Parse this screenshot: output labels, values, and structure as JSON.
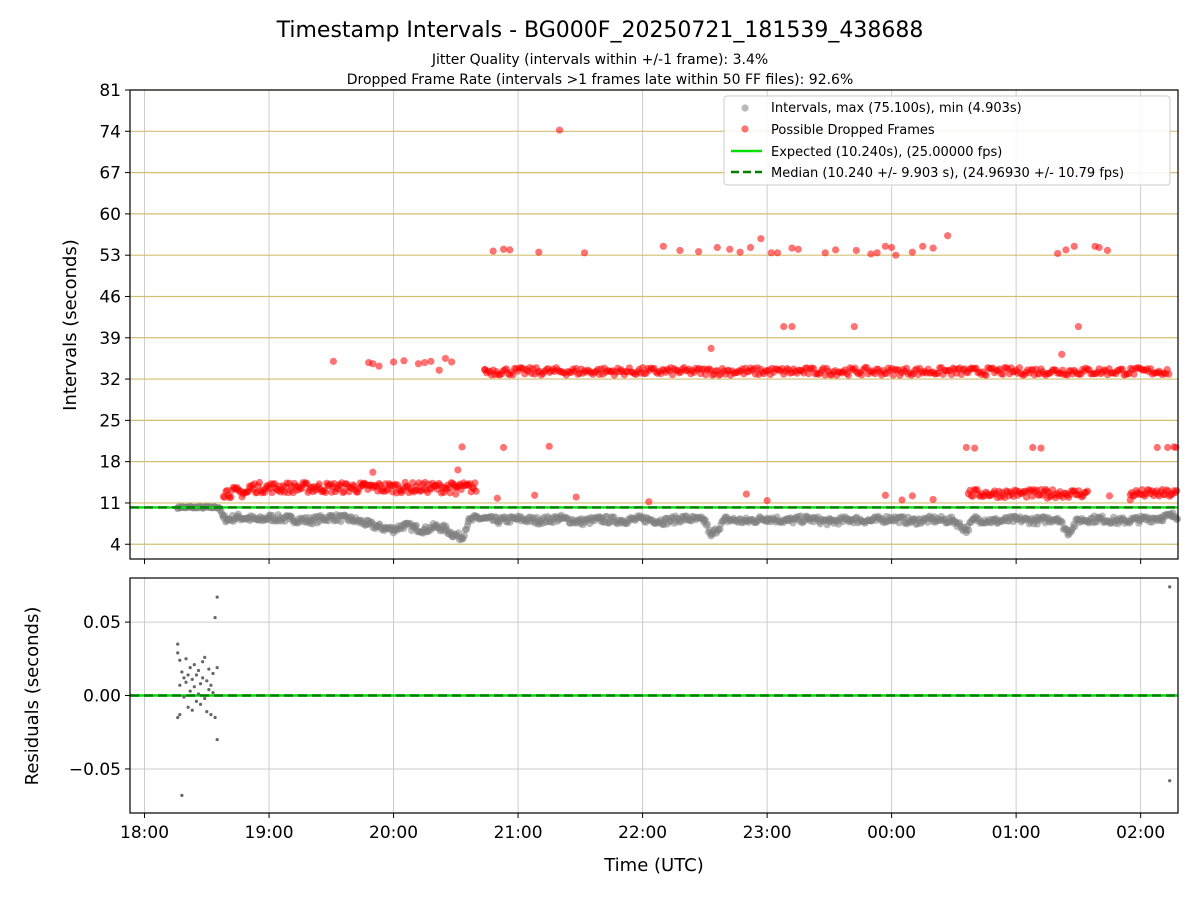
{
  "title": "Timestamp Intervals - BG000F_20250721_181539_438688",
  "subtitle_1": "Jitter Quality (intervals within +/-1 frame): 3.4%",
  "subtitle_2": "Dropped Frame Rate (intervals >1 frames late within 50 FF files): 92.6%",
  "colors": {
    "intervals": "#808080",
    "dropped": "#ff0000",
    "expected": "#00e000",
    "median": "#007f00",
    "hgrid": "#d2bf72",
    "vgrid": "#cccccc"
  },
  "chart_data": [
    {
      "type": "scatter",
      "ylabel": "Intervals (seconds)",
      "xlim": [
        "17:53",
        "02:18"
      ],
      "ylim": [
        1.5,
        81
      ],
      "yticks": [
        "4",
        "11",
        "18",
        "25",
        "32",
        "39",
        "46",
        "53",
        "60",
        "67",
        "74",
        "81"
      ],
      "grid": true,
      "legend_position": "top-right",
      "legend": [
        "Intervals, max (75.100s), min (4.903s)",
        "Possible Dropped Frames",
        "Expected (10.240s), (25.00000 fps)",
        "Median (10.240 +/- 9.903 s), (24.96930 +/- 10.79 fps)"
      ],
      "reference_lines": [
        {
          "name": "Expected",
          "y": 10.24,
          "style": "solid"
        },
        {
          "name": "Median",
          "y": 10.24,
          "style": "dashed"
        }
      ],
      "series": [
        {
          "name": "Intervals, max (75.100s), min (4.903s)",
          "points": [
            [
              "18:16",
              10.2
            ],
            [
              "18:18",
              10.3
            ],
            [
              "18:20",
              10.2
            ],
            [
              "18:22",
              10.3
            ],
            [
              "18:24",
              10.2
            ],
            [
              "18:26",
              10.3
            ],
            [
              "18:28",
              10.2
            ],
            [
              "18:30",
              10.3
            ],
            [
              "18:32",
              10.2
            ],
            [
              "18:34",
              10.3
            ],
            [
              "18:36",
              10.2
            ],
            [
              "18:38",
              8.5
            ],
            [
              "18:40",
              8.2
            ],
            [
              "18:45",
              8.6
            ],
            [
              "18:50",
              8.4
            ],
            [
              "18:55",
              8.1
            ],
            [
              "19:00",
              8.5
            ],
            [
              "19:10",
              8.3
            ],
            [
              "19:20",
              8.0
            ],
            [
              "19:30",
              8.6
            ],
            [
              "19:40",
              8.2
            ],
            [
              "19:48",
              7.4
            ],
            [
              "19:52",
              7.0
            ],
            [
              "19:56",
              6.7
            ],
            [
              "20:00",
              6.5
            ],
            [
              "20:05",
              7.2
            ],
            [
              "20:10",
              6.8
            ],
            [
              "20:15",
              6.4
            ],
            [
              "20:20",
              7.0
            ],
            [
              "20:25",
              6.6
            ],
            [
              "20:28",
              5.8
            ],
            [
              "20:33",
              5.1
            ],
            [
              "20:36",
              7.8
            ],
            [
              "20:40",
              8.5
            ],
            [
              "20:50",
              8.0
            ],
            [
              "21:00",
              8.3
            ],
            [
              "21:10",
              8.0
            ],
            [
              "21:20",
              8.4
            ],
            [
              "21:30",
              7.8
            ],
            [
              "21:40",
              8.2
            ],
            [
              "21:50",
              8.0
            ],
            [
              "22:00",
              8.3
            ],
            [
              "22:10",
              7.9
            ],
            [
              "22:20",
              8.4
            ],
            [
              "22:30",
              8.0
            ],
            [
              "22:33",
              5.4
            ],
            [
              "22:40",
              8.2
            ],
            [
              "22:50",
              7.9
            ],
            [
              "23:00",
              8.4
            ],
            [
              "23:10",
              8.0
            ],
            [
              "23:20",
              8.3
            ],
            [
              "23:30",
              7.8
            ],
            [
              "23:40",
              8.2
            ],
            [
              "23:50",
              8.0
            ],
            [
              "00:00",
              8.4
            ],
            [
              "00:10",
              7.9
            ],
            [
              "00:20",
              8.2
            ],
            [
              "00:30",
              8.0
            ],
            [
              "00:36",
              6.4
            ],
            [
              "00:40",
              8.3
            ],
            [
              "00:50",
              7.9
            ],
            [
              "01:00",
              8.2
            ],
            [
              "01:10",
              8.0
            ],
            [
              "01:20",
              8.4
            ],
            [
              "01:25",
              6.0
            ],
            [
              "01:30",
              8.1
            ],
            [
              "01:40",
              8.3
            ],
            [
              "01:50",
              7.9
            ],
            [
              "02:00",
              8.2
            ],
            [
              "02:10",
              8.5
            ],
            [
              "02:15",
              8.8
            ]
          ]
        },
        {
          "name": "Possible Dropped Frames",
          "points": [
            [
              "19:31",
              35.0
            ],
            [
              "19:48",
              34.8
            ],
            [
              "19:50",
              34.6
            ],
            [
              "19:53",
              34.2
            ],
            [
              "20:00",
              34.9
            ],
            [
              "20:05",
              35.1
            ],
            [
              "20:12",
              34.6
            ],
            [
              "20:15",
              34.8
            ],
            [
              "20:18",
              35.0
            ],
            [
              "20:22",
              33.5
            ],
            [
              "20:25",
              35.5
            ],
            [
              "20:28",
              34.9
            ],
            [
              "20:31",
              16.6
            ],
            [
              "20:33",
              20.5
            ],
            [
              "20:44",
              33.6
            ],
            [
              "20:48",
              53.7
            ],
            [
              "20:53",
              54.0
            ],
            [
              "20:56",
              53.9
            ],
            [
              "20:53",
              20.4
            ],
            [
              "21:15",
              20.6
            ],
            [
              "21:10",
              53.5
            ],
            [
              "21:20",
              74.2
            ],
            [
              "21:32",
              53.4
            ],
            [
              "22:10",
              54.5
            ],
            [
              "22:18",
              53.8
            ],
            [
              "22:27",
              53.6
            ],
            [
              "22:33",
              37.2
            ],
            [
              "22:36",
              54.3
            ],
            [
              "22:42",
              54.0
            ],
            [
              "22:47",
              53.5
            ],
            [
              "22:52",
              54.3
            ],
            [
              "22:57",
              55.8
            ],
            [
              "23:02",
              53.4
            ],
            [
              "23:05",
              53.4
            ],
            [
              "23:12",
              54.2
            ],
            [
              "23:15",
              54.0
            ],
            [
              "23:08",
              40.9
            ],
            [
              "23:12",
              40.9
            ],
            [
              "23:28",
              53.4
            ],
            [
              "23:33",
              53.9
            ],
            [
              "23:42",
              40.9
            ],
            [
              "23:43",
              53.8
            ],
            [
              "23:50",
              53.2
            ],
            [
              "23:53",
              53.4
            ],
            [
              "23:57",
              54.5
            ],
            [
              "00:00",
              54.3
            ],
            [
              "00:02",
              53.0
            ],
            [
              "00:10",
              53.5
            ],
            [
              "00:15",
              54.5
            ],
            [
              "00:20",
              54.2
            ],
            [
              "00:27",
              56.3
            ],
            [
              "00:36",
              20.4
            ],
            [
              "00:40",
              20.3
            ],
            [
              "01:08",
              20.4
            ],
            [
              "01:12",
              20.3
            ],
            [
              "01:20",
              53.3
            ],
            [
              "01:24",
              53.9
            ],
            [
              "01:28",
              54.5
            ],
            [
              "01:30",
              40.9
            ],
            [
              "01:38",
              54.5
            ],
            [
              "01:40",
              54.3
            ],
            [
              "01:44",
              53.8
            ],
            [
              "01:22",
              36.2
            ],
            [
              "02:08",
              20.4
            ],
            [
              "02:13",
              20.4
            ],
            [
              "02:16",
              20.5
            ],
            [
              "02:17",
              20.4
            ],
            [
              "19:45",
              14.0
            ],
            [
              "19:50",
              16.2
            ],
            [
              "20:30",
              12.5
            ],
            [
              "20:50",
              11.8
            ],
            [
              "21:08",
              12.3
            ],
            [
              "21:28",
              12.0
            ],
            [
              "22:03",
              11.2
            ],
            [
              "22:50",
              12.5
            ],
            [
              "23:00",
              11.4
            ],
            [
              "23:57",
              12.3
            ],
            [
              "00:05",
              11.5
            ],
            [
              "00:10",
              12.2
            ],
            [
              "00:20",
              11.6
            ],
            [
              "01:15",
              11.8
            ],
            [
              "01:45",
              12.2
            ],
            [
              "01:55",
              11.5
            ]
          ]
        }
      ]
    },
    {
      "type": "scatter",
      "xlabel": "Time (UTC)",
      "ylabel": "Residuals (seconds)",
      "xlim": [
        "17:53",
        "02:18"
      ],
      "ylim": [
        -0.08,
        0.08
      ],
      "xticks": [
        "18:00",
        "19:00",
        "20:00",
        "21:00",
        "22:00",
        "23:00",
        "00:00",
        "01:00",
        "02:00"
      ],
      "yticks": [
        "0.05",
        "0.00",
        "−0.05"
      ],
      "grid": true,
      "reference_lines": [
        {
          "name": "Expected",
          "y": 0.0,
          "style": "solid"
        },
        {
          "name": "Median",
          "y": 0.0,
          "style": "dashed"
        }
      ],
      "series": [
        {
          "name": "Residuals",
          "points": [
            [
              "18:16",
              0.035
            ],
            [
              "18:16",
              0.029
            ],
            [
              "18:16",
              -0.015
            ],
            [
              "18:17",
              0.024
            ],
            [
              "18:17",
              -0.013
            ],
            [
              "18:17",
              0.007
            ],
            [
              "18:18",
              0.016
            ],
            [
              "18:18",
              -0.068
            ],
            [
              "18:19",
              0.012
            ],
            [
              "18:19",
              -0.001
            ],
            [
              "18:20",
              0.025
            ],
            [
              "18:20",
              0.009
            ],
            [
              "18:21",
              -0.008
            ],
            [
              "18:21",
              0.014
            ],
            [
              "18:22",
              0.003
            ],
            [
              "18:22",
              0.019
            ],
            [
              "18:23",
              -0.01
            ],
            [
              "18:23",
              0.011
            ],
            [
              "18:24",
              0.021
            ],
            [
              "18:24",
              0.006
            ],
            [
              "18:25",
              -0.004
            ],
            [
              "18:25",
              0.014
            ],
            [
              "18:26",
              0.001
            ],
            [
              "18:26",
              0.017
            ],
            [
              "18:27",
              -0.006
            ],
            [
              "18:27",
              0.008
            ],
            [
              "18:28",
              0.023
            ],
            [
              "18:28",
              0.012
            ],
            [
              "18:29",
              -0.002
            ],
            [
              "18:29",
              0.026
            ],
            [
              "18:30",
              0.01
            ],
            [
              "18:30",
              -0.011
            ],
            [
              "18:31",
              0.004
            ],
            [
              "18:31",
              0.018
            ],
            [
              "18:32",
              -0.013
            ],
            [
              "18:32",
              0.007
            ],
            [
              "18:33",
              0.015
            ],
            [
              "18:33",
              0.002
            ],
            [
              "18:34",
              -0.015
            ],
            [
              "18:34",
              0.053
            ],
            [
              "18:35",
              0.067
            ],
            [
              "18:35",
              -0.03
            ],
            [
              "18:35",
              0.019
            ],
            [
              "02:14",
              0.074
            ],
            [
              "02:14",
              -0.058
            ]
          ]
        }
      ]
    }
  ]
}
